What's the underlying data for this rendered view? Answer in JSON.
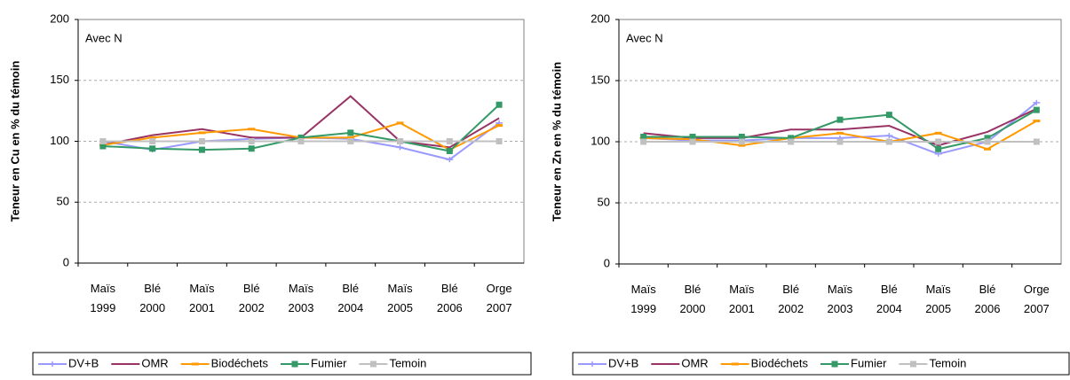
{
  "chart_data": [
    {
      "type": "line",
      "annotation": "Avec N",
      "y_label": "Teneur en Cu en % du témoin",
      "categories": [
        "Maïs 1999",
        "Blé 2000",
        "Maïs 2001",
        "Blé 2002",
        "Maïs 2003",
        "Blé 2004",
        "Maïs 2005",
        "Blé 2006",
        "Orge 2007"
      ],
      "ylim": [
        0,
        200
      ],
      "yticks": [
        0,
        50,
        100,
        150,
        200
      ],
      "grid": true,
      "series": [
        {
          "name": "DV+B",
          "color": "#9999ff",
          "values": [
            100,
            93,
            100,
            102,
            103,
            102,
            95,
            85,
            115
          ]
        },
        {
          "name": "OMR",
          "color": "#993366",
          "values": [
            97,
            105,
            110,
            103,
            103,
            137,
            100,
            95,
            119
          ]
        },
        {
          "name": "Biodéchets",
          "color": "#ff9900",
          "values": [
            97,
            103,
            107,
            110,
            103,
            103,
            115,
            93,
            113
          ]
        },
        {
          "name": "Fumier",
          "color": "#339966",
          "values": [
            96,
            94,
            93,
            94,
            103,
            107,
            100,
            92,
            130
          ]
        },
        {
          "name": "Temoin",
          "color": "#c0c0c0",
          "values": [
            100,
            100,
            100,
            100,
            100,
            100,
            100,
            100,
            100
          ]
        }
      ]
    },
    {
      "type": "line",
      "annotation": "Avec N",
      "y_label": "Teneur en Zn en % du témoin",
      "categories": [
        "Maïs 1999",
        "Blé 2000",
        "Maïs 2001",
        "Blé 2002",
        "Maïs 2003",
        "Blé 2004",
        "Maïs 2005",
        "Blé 2006",
        "Orge 2007"
      ],
      "ylim": [
        0,
        200
      ],
      "yticks": [
        0,
        50,
        100,
        150,
        200
      ],
      "grid": true,
      "series": [
        {
          "name": "DV+B",
          "color": "#9999ff",
          "values": [
            103,
            101,
            101,
            103,
            103,
            105,
            90,
            100,
            132
          ]
        },
        {
          "name": "OMR",
          "color": "#993366",
          "values": [
            107,
            103,
            103,
            110,
            110,
            113,
            97,
            108,
            127
          ]
        },
        {
          "name": "Biodéchets",
          "color": "#ff9900",
          "values": [
            103,
            102,
            97,
            103,
            107,
            100,
            107,
            94,
            117
          ]
        },
        {
          "name": "Fumier",
          "color": "#339966",
          "values": [
            104,
            104,
            104,
            103,
            118,
            122,
            94,
            103,
            126
          ]
        },
        {
          "name": "Temoin",
          "color": "#c0c0c0",
          "values": [
            100,
            100,
            100,
            100,
            100,
            100,
            100,
            100,
            100
          ]
        }
      ]
    }
  ]
}
